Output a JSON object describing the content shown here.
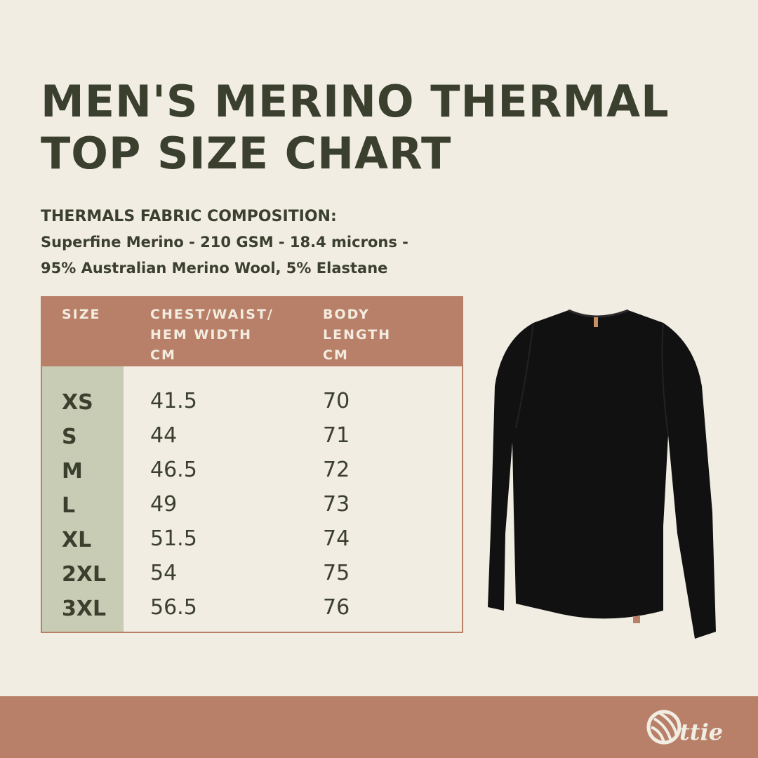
{
  "title_lines": [
    "MEN'S MERINO THERMAL",
    "TOP SIZE CHART"
  ],
  "fabric": {
    "heading": "THERMALS FABRIC COMPOSITION:",
    "line1": "Superfine Merino - 210 GSM - 18.4 microns -",
    "line2": "95% Australian Merino Wool, 5% Elastane"
  },
  "table": {
    "headers": [
      "SIZE",
      "CHEST/WAIST/\nHEM WIDTH\nCM",
      "BODY\nLENGTH\nCM"
    ],
    "rows": [
      {
        "size": "XS",
        "chest": "41.5",
        "length": "70"
      },
      {
        "size": "S",
        "chest": "44",
        "length": "71"
      },
      {
        "size": "M",
        "chest": "46.5",
        "length": "72"
      },
      {
        "size": "L",
        "chest": "49",
        "length": "73"
      },
      {
        "size": "XL",
        "chest": "51.5",
        "length": "74"
      },
      {
        "size": "2XL",
        "chest": "54",
        "length": "75"
      },
      {
        "size": "3XL",
        "chest": "56.5",
        "length": "76"
      }
    ]
  },
  "brand": {
    "logo_text": "ottie"
  },
  "colors": {
    "background": "#f1ede3",
    "accent": "#b88068",
    "sage": "#c9ccb4",
    "text": "#3b3f2e"
  }
}
